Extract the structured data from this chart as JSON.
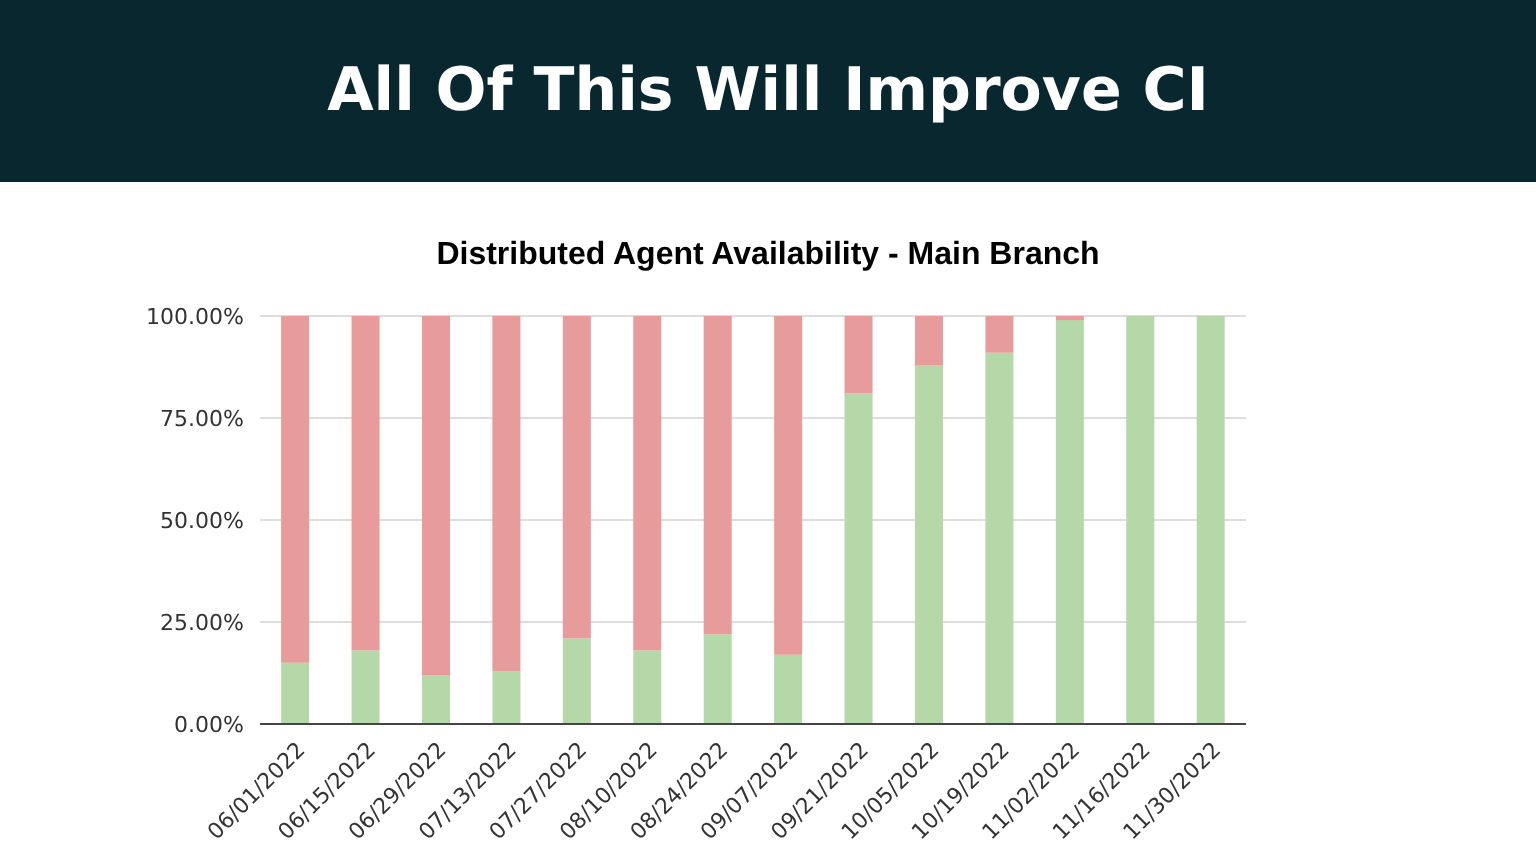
{
  "chart_data": {
    "type": "bar",
    "title": "All Of This Will Improve CI",
    "subtitle": "Distributed Agent Availability - Main Branch",
    "categories": [
      "06/01/2022",
      "06/15/2022",
      "06/29/2022",
      "07/13/2022",
      "07/27/2022",
      "08/10/2022",
      "08/24/2022",
      "09/07/2022",
      "09/21/2022",
      "10/05/2022",
      "10/19/2022",
      "11/02/2022",
      "11/16/2022",
      "11/30/2022"
    ],
    "stacked": true,
    "series": [
      {
        "color": "#b5d8a8",
        "values": [
          15,
          18,
          12,
          13,
          21,
          18,
          22,
          17,
          81,
          88,
          91,
          99,
          100,
          100
        ]
      },
      {
        "color": "#e89b9b",
        "values": [
          85,
          82,
          88,
          87,
          79,
          82,
          78,
          83,
          19,
          12,
          9,
          1,
          0,
          0
        ]
      }
    ],
    "ylim": [
      0,
      100
    ],
    "yticks": [
      {
        "value": 0,
        "label": "0.00%"
      },
      {
        "value": 25,
        "label": "25.00%"
      },
      {
        "value": 50,
        "label": "50.00%"
      },
      {
        "value": 75,
        "label": "75.00%"
      },
      {
        "value": 100,
        "label": "100.00%"
      }
    ],
    "grid": "y",
    "legend": false
  }
}
